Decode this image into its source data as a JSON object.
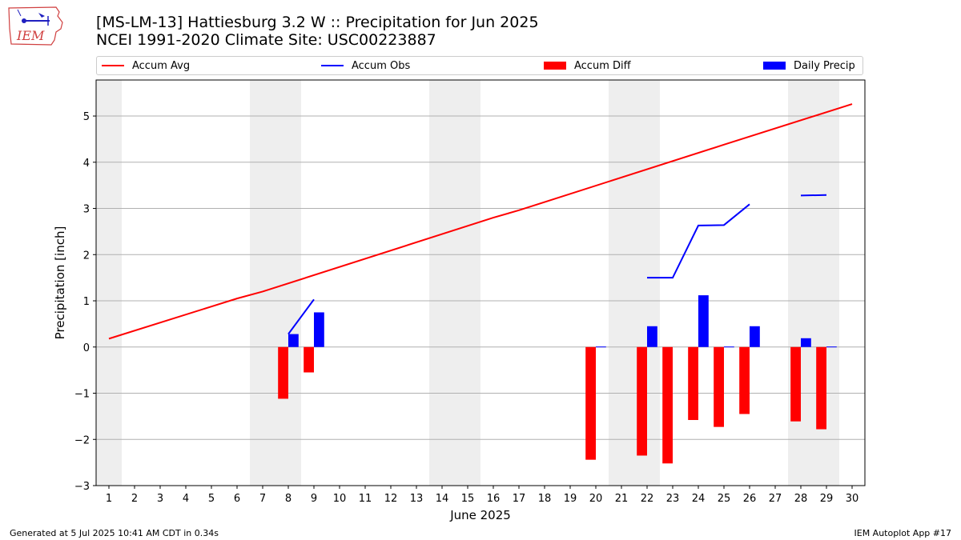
{
  "header": {
    "title_line1": "[MS-LM-13] Hattiesburg 3.2 W :: Precipitation for Jun 2025",
    "title_line2": "NCEI 1991-2020 Climate Site: USC00223887",
    "logo_text": "IEM"
  },
  "footer": {
    "left": "Generated at 5 Jul 2025 10:41 AM CDT in 0.34s",
    "right": "IEM Autoplot App #17"
  },
  "colors": {
    "avg": "#ff0000",
    "obs": "#0000ff",
    "diff": "#ff0000",
    "daily": "#0000ff",
    "weekend_band": "#eeeeee",
    "grid": "#b0b0b0"
  },
  "chart_data": {
    "type": "bar",
    "title": "[MS-LM-13] Hattiesburg 3.2 W :: Precipitation for Jun 2025",
    "subtitle": "NCEI 1991-2020 Climate Site: USC00223887",
    "xlabel": "June 2025",
    "ylabel": "Precipitation [inch]",
    "xlim": [
      0.5,
      30.5
    ],
    "ylim": [
      -3.0,
      5.78
    ],
    "y_ticks": [
      -3,
      -2,
      -1,
      0,
      1,
      2,
      3,
      4,
      5
    ],
    "y_tick_labels": [
      "−3",
      "−2",
      "−1",
      "0",
      "1",
      "2",
      "3",
      "4",
      "5"
    ],
    "x_ticks": [
      "1",
      "2",
      "3",
      "4",
      "5",
      "6",
      "7",
      "8",
      "9",
      "10",
      "11",
      "12",
      "13",
      "14",
      "15",
      "16",
      "17",
      "18",
      "19",
      "20",
      "21",
      "22",
      "23",
      "24",
      "25",
      "26",
      "27",
      "28",
      "29",
      "30"
    ],
    "grid": "horizontal",
    "legend_position": "top",
    "shaded_bands": [
      [
        0.5,
        1.5
      ],
      [
        6.5,
        8.5
      ],
      [
        13.5,
        15.5
      ],
      [
        20.5,
        22.5
      ],
      [
        27.5,
        29.5
      ]
    ],
    "series": [
      {
        "name": "Accum Avg",
        "kind": "line",
        "x": [
          1,
          6,
          7,
          16,
          17,
          25,
          30
        ],
        "y": [
          0.18,
          1.05,
          1.2,
          2.8,
          2.96,
          4.38,
          5.26
        ]
      },
      {
        "name": "Accum Obs",
        "kind": "line",
        "segments": [
          {
            "x": [
              8,
              9
            ],
            "y": [
              0.28,
              1.03
            ]
          },
          {
            "x": [
              22,
              23,
              24,
              25,
              26
            ],
            "y": [
              1.5,
              1.5,
              2.63,
              2.64,
              3.09
            ]
          },
          {
            "x": [
              28,
              29
            ],
            "y": [
              3.28,
              3.29
            ]
          }
        ]
      },
      {
        "name": "Accum Diff",
        "kind": "bar",
        "x": [
          8,
          9,
          20,
          22,
          23,
          24,
          25,
          26,
          28,
          29
        ],
        "values": [
          -1.12,
          -0.55,
          -2.44,
          -2.35,
          -2.52,
          -1.58,
          -1.73,
          -1.45,
          -1.61,
          -1.78
        ]
      },
      {
        "name": "Daily Precip",
        "kind": "bar",
        "x": [
          8,
          9,
          20,
          22,
          24,
          25,
          26,
          28,
          29
        ],
        "values": [
          0.28,
          0.75,
          0.01,
          0.45,
          1.12,
          0.01,
          0.45,
          0.19,
          0.01
        ]
      }
    ]
  }
}
